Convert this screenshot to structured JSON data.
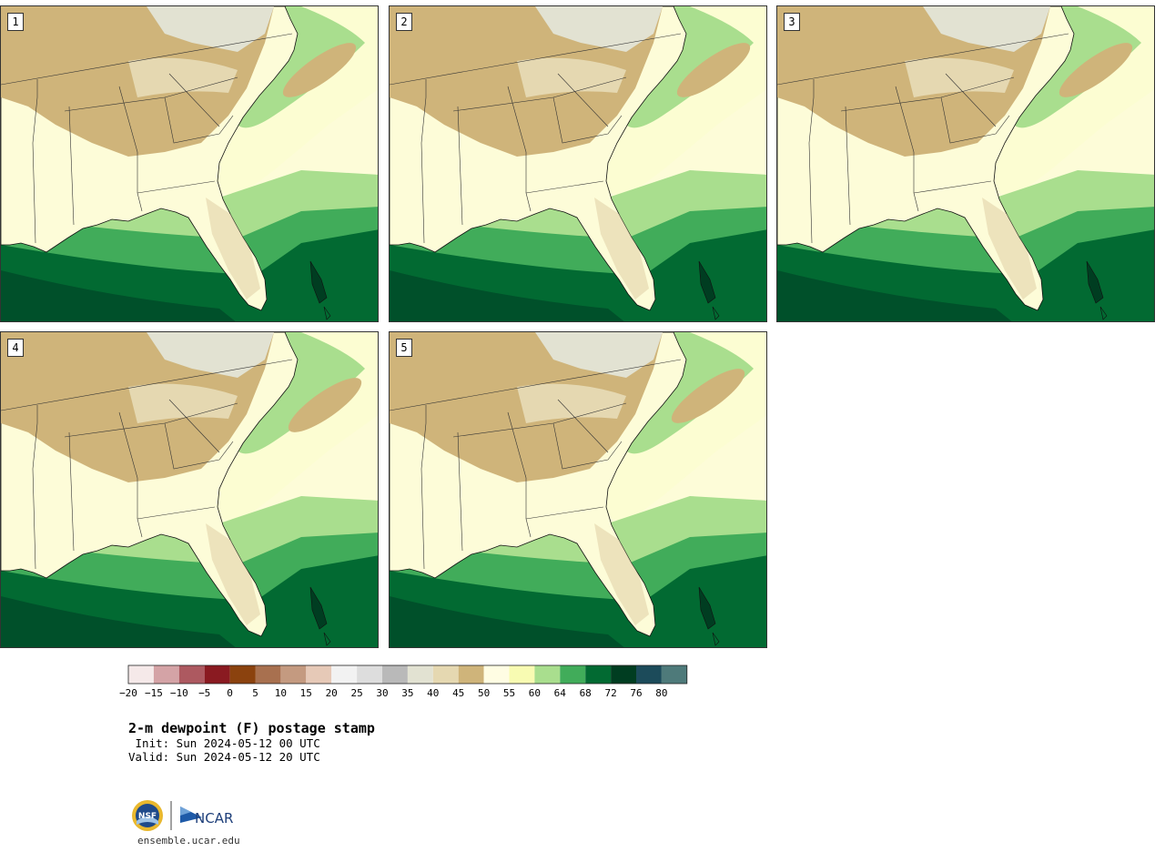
{
  "panels": [
    {
      "label": "1"
    },
    {
      "label": "2"
    },
    {
      "label": "3"
    },
    {
      "label": "4"
    },
    {
      "label": "5"
    }
  ],
  "colorbar": {
    "levels": [
      "−20",
      "−15",
      "−10",
      "−5",
      "0",
      "5",
      "10",
      "15",
      "20",
      "25",
      "30",
      "35",
      "40",
      "45",
      "50",
      "55",
      "60",
      "64",
      "68",
      "72",
      "76",
      "80"
    ],
    "colors": [
      "#f5e9e9",
      "#d4a3a6",
      "#ad5960",
      "#8a1a21",
      "#8b420e",
      "#a8704f",
      "#c49a80",
      "#e6c9b7",
      "#f2f2f2",
      "#dddddd",
      "#b9b9b9",
      "#e2e2d2",
      "#e5d8b1",
      "#cfb47a",
      "#fffde3",
      "#f8fbb2",
      "#a9de8e",
      "#41ac5a",
      "#026a32",
      "#003d21",
      "#1c4b5a",
      "#4e7a7a"
    ]
  },
  "title": "2-m dewpoint (F) postage stamp",
  "init": " Init: Sun 2024-05-12 00 UTC",
  "valid": "Valid: Sun 2024-05-12 20 UTC",
  "logos": {
    "nsf": "NSF",
    "ncar": "NCAR"
  },
  "site": "ensemble.ucar.edu"
}
